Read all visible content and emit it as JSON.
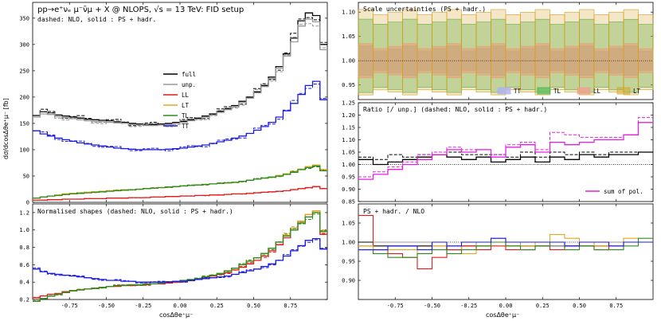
{
  "figure": {
    "main_title": "pp→e⁺νₑ μ⁻ν̄μ + X @ NLOPS,  √s = 13 TeV: FID setup",
    "main_subtitle": "dashed: NLO, solid : PS + hadr.",
    "main_ylabel": "dσ/dcosΔθe⁺μ⁻ [fb]",
    "xlabel": "cosΔθe⁺μ⁻",
    "shapes_title": "Normalised shapes (dashed: NLO, solid : PS + hadr.)",
    "scale_title": "Scale uncertainties (PS + hadr.)",
    "ratio_title": "Ratio [/ unp.] (dashed: NLO, solid : PS + hadr.)",
    "psnlo_title": "PS + hadr. / NLO",
    "sum_label": "sum of pol."
  },
  "colors": {
    "full": "#000000",
    "unp": "#999999",
    "LL": "#e41a1c",
    "LT": "#e0a820",
    "TL": "#2e8b1e",
    "TT": "#1a1ae6",
    "sum": "#e020e0",
    "bandTT": "#b0b0f5",
    "bandTL": "#3cb44b",
    "bandLL": "#f0a090",
    "bandLT": "#d4a020"
  },
  "chart_data": [
    {
      "type": "line",
      "title": "dσ/dcosΔθ",
      "x_edges": [
        -1.0,
        -0.95,
        -0.9,
        -0.85,
        -0.8,
        -0.75,
        -0.7,
        -0.65,
        -0.6,
        -0.55,
        -0.5,
        -0.45,
        -0.4,
        -0.35,
        -0.3,
        -0.25,
        -0.2,
        -0.15,
        -0.1,
        -0.05,
        0.0,
        0.05,
        0.1,
        0.15,
        0.2,
        0.25,
        0.3,
        0.35,
        0.4,
        0.45,
        0.5,
        0.55,
        0.6,
        0.65,
        0.7,
        0.75,
        0.8,
        0.85,
        0.9,
        0.95,
        1.0
      ],
      "xlim": [
        -1.0,
        1.0
      ],
      "ylim": [
        0,
        380
      ],
      "yticks": [
        0,
        50,
        100,
        150,
        200,
        250,
        300,
        350
      ],
      "xticks": [
        -0.75,
        -0.5,
        -0.25,
        0.0,
        0.25,
        0.5,
        0.75
      ],
      "series": [
        {
          "name": "full",
          "values": [
            165,
            172,
            170,
            166,
            164,
            162,
            160,
            158,
            157,
            156,
            155,
            153,
            152,
            150,
            149,
            148,
            148,
            149,
            150,
            152,
            154,
            157,
            160,
            164,
            168,
            173,
            178,
            184,
            192,
            200,
            210,
            222,
            238,
            258,
            282,
            312,
            345,
            360,
            355,
            300
          ]
        },
        {
          "name": "unp.",
          "values": [
            162,
            168,
            167,
            163,
            161,
            159,
            157,
            155,
            154,
            153,
            152,
            151,
            150,
            148,
            147,
            146,
            146,
            147,
            148,
            150,
            152,
            155,
            158,
            162,
            166,
            171,
            176,
            182,
            190,
            198,
            208,
            220,
            235,
            255,
            278,
            305,
            335,
            348,
            343,
            290
          ]
        },
        {
          "name": "LL",
          "values": [
            4,
            4,
            5,
            5,
            6,
            6,
            6,
            7,
            7,
            7,
            8,
            8,
            8,
            9,
            9,
            9,
            10,
            10,
            11,
            11,
            12,
            12,
            13,
            13,
            14,
            14,
            15,
            16,
            16,
            17,
            18,
            19,
            20,
            21,
            22,
            24,
            26,
            28,
            30,
            26
          ]
        },
        {
          "name": "LT",
          "values": [
            8,
            10,
            12,
            14,
            16,
            17,
            18,
            19,
            20,
            21,
            22,
            23,
            24,
            24,
            25,
            26,
            27,
            28,
            29,
            30,
            31,
            32,
            33,
            34,
            35,
            36,
            37,
            38,
            40,
            42,
            44,
            46,
            48,
            51,
            54,
            58,
            63,
            68,
            71,
            62
          ]
        },
        {
          "name": "TL",
          "values": [
            8,
            10,
            12,
            13,
            15,
            16,
            17,
            18,
            19,
            20,
            21,
            22,
            23,
            24,
            25,
            26,
            27,
            28,
            29,
            30,
            31,
            32,
            33,
            34,
            35,
            36,
            37,
            38,
            40,
            42,
            44,
            46,
            48,
            50,
            53,
            57,
            62,
            66,
            69,
            60
          ]
        },
        {
          "name": "TT",
          "values": [
            136,
            130,
            126,
            122,
            119,
            116,
            113,
            111,
            109,
            107,
            105,
            103,
            102,
            101,
            100,
            100,
            100,
            100,
            101,
            102,
            103,
            105,
            107,
            109,
            112,
            115,
            118,
            122,
            126,
            131,
            137,
            144,
            152,
            162,
            174,
            188,
            205,
            222,
            230,
            195
          ]
        }
      ]
    },
    {
      "type": "line",
      "title": "Normalised shapes (dashed: NLO, solid : PS + hadr.)",
      "xlim": [
        -1.0,
        1.0
      ],
      "ylim": [
        0.2,
        1.3
      ],
      "yticks": [
        0.2,
        0.4,
        0.6,
        0.8,
        1.0,
        1.2
      ],
      "series": [
        {
          "name": "LL",
          "values": [
            0.22,
            0.24,
            0.26,
            0.27,
            0.29,
            0.3,
            0.31,
            0.32,
            0.33,
            0.34,
            0.35,
            0.35,
            0.36,
            0.36,
            0.37,
            0.37,
            0.38,
            0.38,
            0.39,
            0.4,
            0.41,
            0.42,
            0.43,
            0.45,
            0.47,
            0.49,
            0.51,
            0.54,
            0.57,
            0.61,
            0.65,
            0.7,
            0.76,
            0.83,
            0.91,
            1.0,
            1.1,
            1.18,
            1.22,
            0.95
          ]
        },
        {
          "name": "LT",
          "values": [
            0.18,
            0.21,
            0.24,
            0.26,
            0.28,
            0.3,
            0.31,
            0.32,
            0.33,
            0.34,
            0.35,
            0.36,
            0.36,
            0.37,
            0.37,
            0.38,
            0.38,
            0.39,
            0.4,
            0.41,
            0.42,
            0.43,
            0.44,
            0.46,
            0.48,
            0.5,
            0.53,
            0.56,
            0.6,
            0.64,
            0.68,
            0.73,
            0.79,
            0.86,
            0.94,
            1.02,
            1.1,
            1.18,
            1.22,
            0.99
          ]
        },
        {
          "name": "TL",
          "values": [
            0.18,
            0.21,
            0.24,
            0.26,
            0.28,
            0.3,
            0.31,
            0.32,
            0.33,
            0.34,
            0.35,
            0.36,
            0.36,
            0.37,
            0.37,
            0.38,
            0.38,
            0.39,
            0.4,
            0.41,
            0.42,
            0.43,
            0.44,
            0.46,
            0.48,
            0.5,
            0.53,
            0.56,
            0.6,
            0.64,
            0.68,
            0.73,
            0.79,
            0.86,
            0.93,
            1.0,
            1.08,
            1.15,
            1.2,
            0.98
          ]
        },
        {
          "name": "TT",
          "values": [
            0.55,
            0.52,
            0.5,
            0.49,
            0.48,
            0.47,
            0.46,
            0.45,
            0.44,
            0.43,
            0.42,
            0.42,
            0.41,
            0.41,
            0.4,
            0.4,
            0.4,
            0.4,
            0.4,
            0.41,
            0.41,
            0.42,
            0.43,
            0.44,
            0.45,
            0.46,
            0.47,
            0.49,
            0.51,
            0.53,
            0.55,
            0.58,
            0.61,
            0.65,
            0.7,
            0.76,
            0.82,
            0.88,
            0.9,
            0.78
          ]
        }
      ]
    },
    {
      "type": "area",
      "title": "Scale uncertainties (PS + hadr.)",
      "xlim": [
        -1.0,
        1.0
      ],
      "ylim": [
        0.92,
        1.12
      ],
      "yticks": [
        0.95,
        1.0,
        1.05,
        1.1
      ],
      "bins": 20,
      "bands": [
        {
          "name": "TT",
          "lo": 0.975,
          "hi": 1.025
        },
        {
          "name": "TL",
          "lo": 0.94,
          "hi": 1.08
        },
        {
          "name": "LL",
          "lo": 0.97,
          "hi": 1.03
        },
        {
          "name": "LT",
          "lo": 0.935,
          "hi": 1.1
        }
      ],
      "legend": [
        "TT",
        "TL",
        "LL",
        "LT"
      ]
    },
    {
      "type": "line",
      "title": "Ratio [/ unp.] (dashed: NLO, solid : PS + hadr.)",
      "xlim": [
        -1.0,
        1.0
      ],
      "ylim": [
        0.85,
        1.25
      ],
      "yticks": [
        0.85,
        0.9,
        0.95,
        1.0,
        1.05,
        1.1,
        1.15,
        1.2,
        1.25
      ],
      "bins": 20,
      "series": [
        {
          "name": "full",
          "values": [
            1.02,
            1.0,
            1.01,
            1.02,
            1.03,
            1.04,
            1.03,
            1.02,
            1.03,
            1.01,
            1.02,
            1.03,
            1.01,
            1.03,
            1.02,
            1.04,
            1.03,
            1.04,
            1.04,
            1.05
          ]
        },
        {
          "name": "full NLO",
          "values": [
            1.03,
            1.02,
            1.04,
            1.03,
            1.04,
            1.04,
            1.05,
            1.04,
            1.04,
            1.04,
            1.03,
            1.05,
            1.03,
            1.05,
            1.04,
            1.05,
            1.04,
            1.05,
            1.05,
            1.05
          ]
        },
        {
          "name": "sum of pol.",
          "values": [
            0.94,
            0.96,
            0.98,
            1.0,
            1.02,
            1.04,
            1.06,
            1.05,
            1.06,
            1.03,
            1.07,
            1.08,
            1.05,
            1.09,
            1.08,
            1.09,
            1.1,
            1.1,
            1.12,
            1.17
          ]
        },
        {
          "name": "sum NLO",
          "values": [
            0.95,
            0.97,
            0.99,
            1.01,
            1.04,
            1.05,
            1.07,
            1.06,
            1.06,
            1.04,
            1.08,
            1.09,
            1.06,
            1.13,
            1.12,
            1.11,
            1.11,
            1.11,
            1.12,
            1.19
          ]
        }
      ],
      "legend": [
        "sum of pol."
      ]
    },
    {
      "type": "line",
      "title": "PS + hadr. / NLO",
      "xlim": [
        -1.0,
        1.0
      ],
      "ylim": [
        0.85,
        1.1
      ],
      "yticks": [
        0.9,
        0.95,
        1.0,
        1.05
      ],
      "bins": 20,
      "series": [
        {
          "name": "full",
          "values": [
            1.0,
            0.99,
            0.99,
            0.99,
            0.99,
            1.0,
            0.98,
            0.99,
            0.99,
            1.0,
            0.99,
            0.99,
            0.99,
            0.99,
            0.99,
            0.99,
            0.99,
            1.0,
            1.0,
            1.0
          ]
        },
        {
          "name": "unp.",
          "values": [
            0.99,
            1.0,
            1.0,
            1.0,
            1.0,
            0.99,
            0.99,
            0.99,
            1.0,
            1.0,
            0.99,
            1.0,
            1.0,
            0.99,
            0.99,
            1.0,
            1.0,
            1.0,
            1.0,
            1.0
          ]
        },
        {
          "name": "LL",
          "values": [
            1.07,
            0.98,
            0.97,
            0.96,
            0.93,
            0.96,
            0.98,
            0.99,
            0.98,
            0.99,
            0.98,
            0.98,
            0.99,
            0.98,
            0.99,
            0.99,
            0.98,
            0.99,
            1.0,
            1.0
          ]
        },
        {
          "name": "LT",
          "values": [
            0.99,
            0.98,
            0.98,
            0.98,
            0.97,
            0.99,
            0.99,
            0.97,
            0.99,
            1.01,
            0.99,
            0.99,
            1.0,
            1.02,
            1.01,
            1.0,
            0.99,
            0.99,
            1.01,
            1.0
          ]
        },
        {
          "name": "TL",
          "values": [
            0.98,
            0.97,
            0.96,
            0.96,
            0.97,
            0.98,
            0.97,
            0.98,
            0.99,
            1.0,
            0.99,
            0.98,
            0.99,
            1.0,
            0.98,
            0.99,
            0.98,
            0.98,
            0.99,
            1.01
          ]
        },
        {
          "name": "TT",
          "values": [
            0.98,
            0.98,
            0.99,
            0.99,
            0.98,
            1.0,
            0.99,
            1.0,
            1.0,
            1.01,
            1.0,
            1.0,
            1.0,
            1.0,
            0.99,
            1.0,
            1.0,
            0.99,
            1.0,
            1.0
          ]
        }
      ]
    }
  ]
}
